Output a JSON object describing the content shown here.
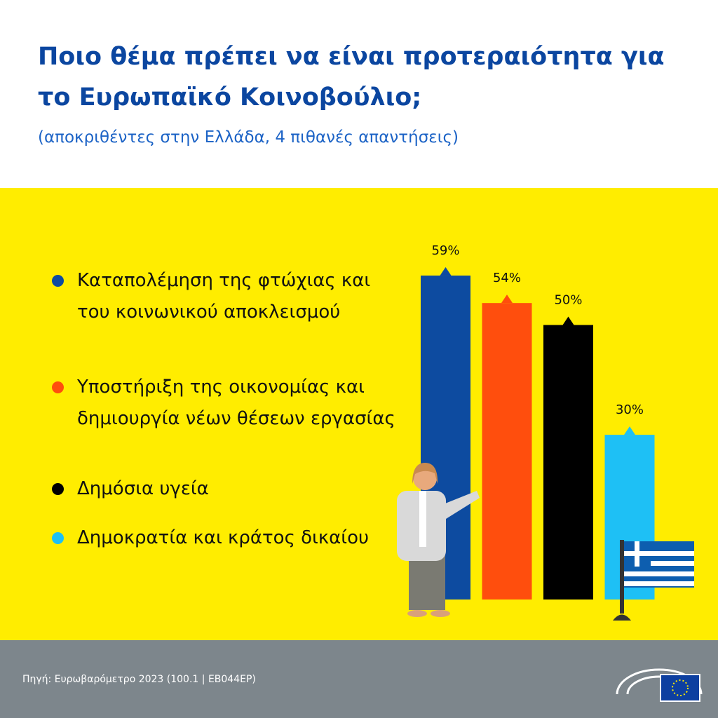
{
  "chart_data": {
    "type": "bar",
    "title": "Ποιο θέμα πρέπει να είναι προτεραιότητα για το Ευρωπαϊκό Κοινοβούλιο;",
    "subtitle": "(αποκριθέντες στην Ελλάδα, 4 πιθανές απαντήσεις)",
    "categories": [
      "Καταπολέμηση της φτώχιας και του κοινωνικού αποκλεισμού",
      "Υποστήριξη της οικονομίας και δημιουργία νέων θέσεων εργασίας",
      "Δημόσια υγεία",
      "Δημοκρατία και κράτος δικαίου"
    ],
    "values": [
      59,
      54,
      50,
      30
    ],
    "value_labels": [
      "59%",
      "54%",
      "50%",
      "30%"
    ],
    "colors": [
      "#0d4ba0",
      "#ff4e0d",
      "#000000",
      "#1ec0f5"
    ],
    "source": "Πηγή: Ευρωβαρόμετρο 2023 (100.1 | EB044EP)"
  }
}
